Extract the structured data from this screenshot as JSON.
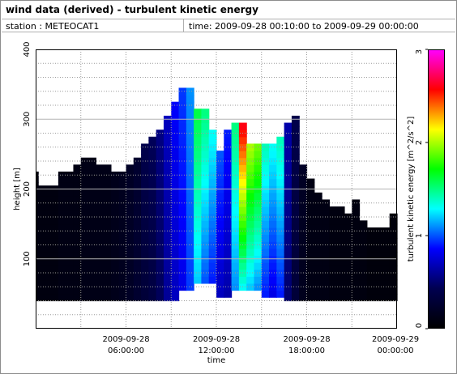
{
  "header": {
    "title": "wind data (derived) - turbulent kinetic energy",
    "station": "station : METEOCAT1",
    "time_range": "time: 2009-09-28 00:10:00 to 2009-09-29 00:00:00"
  },
  "chart_data": {
    "type": "heatmap",
    "xlabel": "time",
    "ylabel": "height [m]",
    "xlim_hours": [
      0,
      24
    ],
    "ylim": [
      0,
      400
    ],
    "x_ticks": [
      {
        "h": 6,
        "line1": "2009-09-28",
        "line2": "06:00:00"
      },
      {
        "h": 12,
        "line1": "2009-09-28",
        "line2": "12:00:00"
      },
      {
        "h": 18,
        "line1": "2009-09-28",
        "line2": "18:00:00"
      },
      {
        "h": 24,
        "line1": "2009-09-29",
        "line2": "00:00:00"
      }
    ],
    "y_ticks": [
      100,
      200,
      300,
      400
    ],
    "colorbar": {
      "label": "turbulent kinetic energy [m^2/s^2]",
      "min": 0,
      "max": 3,
      "ticks": [
        0,
        1,
        2,
        3
      ],
      "stops": [
        "#000000",
        "#000050",
        "#0000ff",
        "#00ffff",
        "#00ff00",
        "#ffff00",
        "#ff0000",
        "#ff00ff"
      ]
    },
    "grid": true,
    "grid_y_minor": 20,
    "grid_x_major_h": 3,
    "columns": [
      {
        "t0": 0.0,
        "t1": 0.17,
        "top": 225,
        "bottom": 40,
        "vals": [
          0.08
        ]
      },
      {
        "t0": 0.17,
        "t1": 1.5,
        "top": 205,
        "bottom": 40,
        "vals": [
          0.08
        ]
      },
      {
        "t0": 1.5,
        "t1": 2.5,
        "top": 225,
        "bottom": 40,
        "vals": [
          0.1
        ]
      },
      {
        "t0": 2.5,
        "t1": 3.0,
        "top": 235,
        "bottom": 40,
        "vals": [
          0.1
        ]
      },
      {
        "t0": 3.0,
        "t1": 4.0,
        "top": 245,
        "bottom": 40,
        "vals": [
          0.12
        ]
      },
      {
        "t0": 4.0,
        "t1": 5.0,
        "top": 235,
        "bottom": 40,
        "vals": [
          0.12
        ]
      },
      {
        "t0": 5.0,
        "t1": 5.5,
        "top": 225,
        "bottom": 40,
        "vals": [
          0.14
        ]
      },
      {
        "t0": 5.5,
        "t1": 6.0,
        "top": 225,
        "bottom": 40,
        "vals": [
          0.16
        ]
      },
      {
        "t0": 6.0,
        "t1": 6.5,
        "top": 235,
        "bottom": 40,
        "vals": [
          0.2
        ]
      },
      {
        "t0": 6.5,
        "t1": 7.0,
        "top": 245,
        "bottom": 40,
        "vals": [
          0.25
        ]
      },
      {
        "t0": 7.0,
        "t1": 7.5,
        "top": 265,
        "bottom": 40,
        "vals": [
          0.3,
          0.4
        ]
      },
      {
        "t0": 7.5,
        "t1": 8.0,
        "top": 275,
        "bottom": 40,
        "vals": [
          0.35,
          0.45
        ]
      },
      {
        "t0": 8.0,
        "t1": 8.5,
        "top": 285,
        "bottom": 40,
        "vals": [
          0.45,
          0.55
        ]
      },
      {
        "t0": 8.5,
        "t1": 9.0,
        "top": 305,
        "bottom": 40,
        "vals": [
          0.6,
          0.7
        ]
      },
      {
        "t0": 9.0,
        "t1": 9.5,
        "top": 325,
        "bottom": 40,
        "vals": [
          0.7,
          0.85
        ]
      },
      {
        "t0": 9.5,
        "t1": 10.0,
        "top": 345,
        "bottom": 55,
        "vals": [
          0.8,
          0.95
        ]
      },
      {
        "t0": 10.0,
        "t1": 10.5,
        "top": 345,
        "bottom": 55,
        "vals": [
          0.95,
          1.1
        ]
      },
      {
        "t0": 10.5,
        "t1": 11.0,
        "top": 315,
        "bottom": 65,
        "vals": [
          1.2,
          1.6
        ]
      },
      {
        "t0": 11.0,
        "t1": 11.5,
        "top": 315,
        "bottom": 65,
        "vals": [
          1.0,
          1.5
        ]
      },
      {
        "t0": 11.5,
        "t1": 12.0,
        "top": 285,
        "bottom": 65,
        "vals": [
          0.9,
          1.3
        ]
      },
      {
        "t0": 12.0,
        "t1": 12.5,
        "top": 255,
        "bottom": 45,
        "vals": [
          0.7,
          1.0
        ]
      },
      {
        "t0": 12.5,
        "t1": 13.0,
        "top": 285,
        "bottom": 45,
        "vals": [
          0.65,
          0.9
        ]
      },
      {
        "t0": 13.0,
        "t1": 13.5,
        "top": 295,
        "bottom": 55,
        "vals": [
          1.1,
          1.5
        ]
      },
      {
        "t0": 13.5,
        "t1": 14.0,
        "top": 295,
        "bottom": 55,
        "vals": [
          1.3,
          2.6
        ]
      },
      {
        "t0": 14.0,
        "t1": 14.5,
        "top": 265,
        "bottom": 55,
        "vals": [
          1.2,
          2.0
        ]
      },
      {
        "t0": 14.5,
        "t1": 15.0,
        "top": 265,
        "bottom": 55,
        "vals": [
          1.1,
          1.9
        ]
      },
      {
        "t0": 15.0,
        "t1": 15.5,
        "top": 265,
        "bottom": 45,
        "vals": [
          0.9,
          1.4
        ]
      },
      {
        "t0": 15.5,
        "t1": 16.0,
        "top": 265,
        "bottom": 45,
        "vals": [
          0.8,
          1.3
        ]
      },
      {
        "t0": 16.0,
        "t1": 16.5,
        "top": 275,
        "bottom": 45,
        "vals": [
          0.9,
          1.4
        ]
      },
      {
        "t0": 16.5,
        "t1": 17.0,
        "top": 295,
        "bottom": 40,
        "vals": [
          0.5,
          0.65
        ]
      },
      {
        "t0": 17.0,
        "t1": 17.5,
        "top": 305,
        "bottom": 40,
        "vals": [
          0.3,
          0.4
        ]
      },
      {
        "t0": 17.5,
        "t1": 18.0,
        "top": 235,
        "bottom": 40,
        "vals": [
          0.15,
          0.2
        ]
      },
      {
        "t0": 18.0,
        "t1": 18.5,
        "top": 215,
        "bottom": 40,
        "vals": [
          0.1
        ]
      },
      {
        "t0": 18.5,
        "t1": 19.0,
        "top": 195,
        "bottom": 40,
        "vals": [
          0.1
        ]
      },
      {
        "t0": 19.0,
        "t1": 19.5,
        "top": 185,
        "bottom": 40,
        "vals": [
          0.1
        ]
      },
      {
        "t0": 19.5,
        "t1": 20.5,
        "top": 175,
        "bottom": 40,
        "vals": [
          0.08
        ]
      },
      {
        "t0": 20.5,
        "t1": 21.0,
        "top": 165,
        "bottom": 40,
        "vals": [
          0.08
        ]
      },
      {
        "t0": 21.0,
        "t1": 21.5,
        "top": 185,
        "bottom": 40,
        "vals": [
          0.08
        ]
      },
      {
        "t0": 21.5,
        "t1": 22.0,
        "top": 155,
        "bottom": 40,
        "vals": [
          0.08
        ]
      },
      {
        "t0": 22.0,
        "t1": 23.5,
        "top": 145,
        "bottom": 40,
        "vals": [
          0.06
        ]
      },
      {
        "t0": 23.5,
        "t1": 24.0,
        "top": 165,
        "bottom": 40,
        "vals": [
          0.06
        ]
      }
    ]
  }
}
